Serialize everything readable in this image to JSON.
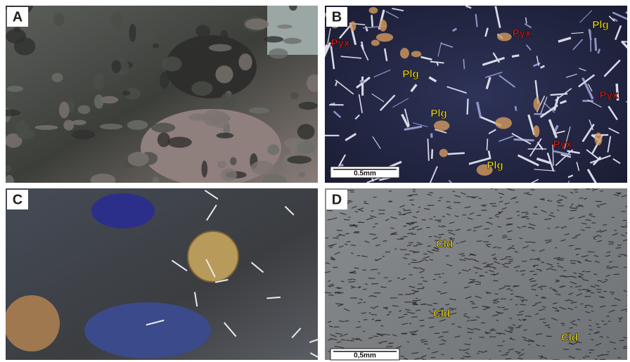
{
  "panels": [
    {
      "letter": "A"
    },
    {
      "letter": "B",
      "labels": [
        "Pyx",
        "Plg",
        "Pyx",
        "Plg",
        "Plg",
        "Pyx",
        "Pyx",
        "Plg"
      ],
      "scale_bar": "0.5mm"
    },
    {
      "letter": "C"
    },
    {
      "letter": "D",
      "labels": [
        "Cld",
        "Cld",
        "Cld"
      ],
      "scale_bar": "0,5mm"
    }
  ]
}
